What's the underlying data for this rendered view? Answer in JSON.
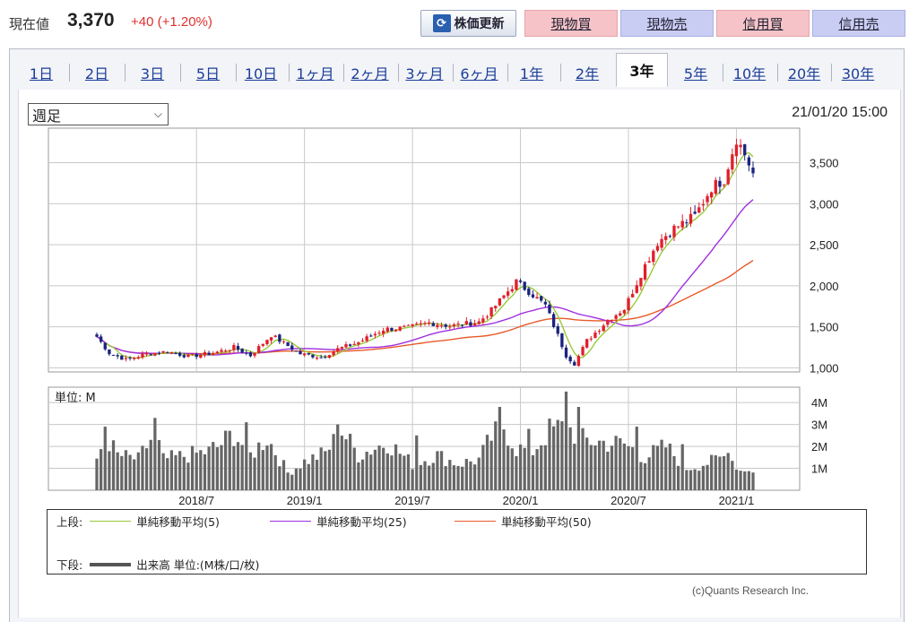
{
  "header": {
    "price_label": "現在値",
    "price_value": "3,370",
    "price_change": "+40 (+1.20%)",
    "refresh_label": "株価更新",
    "buttons": [
      {
        "label": "現物買",
        "kind": "buy"
      },
      {
        "label": "現物売",
        "kind": "sell"
      },
      {
        "label": "信用買",
        "kind": "buy"
      },
      {
        "label": "信用売",
        "kind": "sell"
      }
    ]
  },
  "tabs": [
    {
      "label": "1日"
    },
    {
      "label": "2日"
    },
    {
      "label": "3日"
    },
    {
      "label": "5日"
    },
    {
      "label": "10日"
    },
    {
      "label": "1ヶ月"
    },
    {
      "label": "2ヶ月"
    },
    {
      "label": "3ヶ月"
    },
    {
      "label": "6ヶ月"
    },
    {
      "label": "1年"
    },
    {
      "label": "2年"
    },
    {
      "label": "3年",
      "active": true
    },
    {
      "label": "5年"
    },
    {
      "label": "10年"
    },
    {
      "label": "20年"
    },
    {
      "label": "30年"
    }
  ],
  "controls": {
    "period_selected": "週足",
    "datetime": "21/01/20 15:00"
  },
  "colors": {
    "up": "#e0202a",
    "down": "#1a237e",
    "ma5": "#99c93a",
    "ma25": "#a030e0",
    "ma50": "#e85a2a",
    "volume": "#666666"
  },
  "chart_data": {
    "type": "candlestick",
    "price_axis": {
      "ticks": [
        "1,000",
        "1,500",
        "2,000",
        "2,500",
        "3,000",
        "3,500"
      ],
      "tick_values": [
        1000,
        1500,
        2000,
        2500,
        3000,
        3500
      ],
      "ylim": [
        950,
        3920
      ]
    },
    "volume_axis": {
      "unit_label": "単位: M",
      "ticks": [
        "1M",
        "2M",
        "3M",
        "4M"
      ],
      "tick_values": [
        1,
        2,
        3,
        4
      ],
      "ylim": [
        0,
        4.7
      ]
    },
    "x_labels": [
      "2018/7",
      "2019/1",
      "2019/7",
      "2020/1",
      "2020/7",
      "2021/1"
    ],
    "x_label_positions": [
      24,
      50,
      76,
      102,
      128,
      154
    ],
    "close_anchors": [
      [
        0,
        1380
      ],
      [
        3,
        1180
      ],
      [
        7,
        1100
      ],
      [
        12,
        1170
      ],
      [
        17,
        1200
      ],
      [
        22,
        1140
      ],
      [
        28,
        1180
      ],
      [
        33,
        1250
      ],
      [
        37,
        1150
      ],
      [
        42,
        1400
      ],
      [
        45,
        1300
      ],
      [
        49,
        1170
      ],
      [
        54,
        1130
      ],
      [
        58,
        1230
      ],
      [
        63,
        1310
      ],
      [
        69,
        1470
      ],
      [
        75,
        1490
      ],
      [
        80,
        1550
      ],
      [
        85,
        1510
      ],
      [
        92,
        1560
      ],
      [
        95,
        1700
      ],
      [
        101,
        2050
      ],
      [
        104,
        1930
      ],
      [
        108,
        1760
      ],
      [
        113,
        1150
      ],
      [
        115,
        1050
      ],
      [
        118,
        1330
      ],
      [
        123,
        1580
      ],
      [
        127,
        1720
      ],
      [
        132,
        2250
      ],
      [
        135,
        2530
      ],
      [
        139,
        2700
      ],
      [
        144,
        2850
      ],
      [
        148,
        3200
      ],
      [
        151,
        3300
      ],
      [
        154,
        3800
      ],
      [
        156,
        3600
      ],
      [
        158,
        3370
      ]
    ],
    "volume_anchors": [
      [
        0,
        1.2
      ],
      [
        2,
        2.5
      ],
      [
        5,
        1.6
      ],
      [
        10,
        1.4
      ],
      [
        14,
        2.6
      ],
      [
        16,
        1.4
      ],
      [
        22,
        1.6
      ],
      [
        28,
        1.8
      ],
      [
        33,
        2.6
      ],
      [
        37,
        1.6
      ],
      [
        41,
        2.4
      ],
      [
        46,
        0.8
      ],
      [
        50,
        1.3
      ],
      [
        55,
        1.7
      ],
      [
        59,
        2.7
      ],
      [
        63,
        1.6
      ],
      [
        70,
        2.2
      ],
      [
        76,
        1.2
      ],
      [
        82,
        1.6
      ],
      [
        87,
        1.2
      ],
      [
        92,
        1.4
      ],
      [
        95,
        2.4
      ],
      [
        98,
        2.9
      ],
      [
        101,
        1.9
      ],
      [
        105,
        1.8
      ],
      [
        109,
        2.7
      ],
      [
        113,
        2.9
      ],
      [
        117,
        2.3
      ],
      [
        121,
        2.2
      ],
      [
        127,
        2.1
      ],
      [
        132,
        1.5
      ],
      [
        137,
        2.0
      ],
      [
        142,
        1.0
      ],
      [
        148,
        1.3
      ],
      [
        152,
        1.6
      ],
      [
        155,
        0.9
      ],
      [
        157,
        1.0
      ],
      [
        158,
        0.8
      ]
    ],
    "volume_spikes": [
      [
        2,
        2.9
      ],
      [
        14,
        3.3
      ],
      [
        28,
        2.2
      ],
      [
        36,
        3.1
      ],
      [
        58,
        3.0
      ],
      [
        77,
        2.5
      ],
      [
        97,
        3.8
      ],
      [
        104,
        2.8
      ],
      [
        113,
        4.5
      ],
      [
        116,
        3.8
      ],
      [
        130,
        2.9
      ],
      [
        141,
        2.1
      ],
      [
        152,
        1.7
      ]
    ],
    "n_weeks": 159,
    "legend": {
      "upper_label": "上段:",
      "lower_label": "下段:",
      "ma5": "単純移動平均(5)",
      "ma25": "単純移動平均(25)",
      "ma50": "単純移動平均(50)",
      "volume": "出来高 単位:(M株/口/枚)"
    }
  },
  "footer": {
    "copyright": "(c)Quants Research Inc."
  }
}
